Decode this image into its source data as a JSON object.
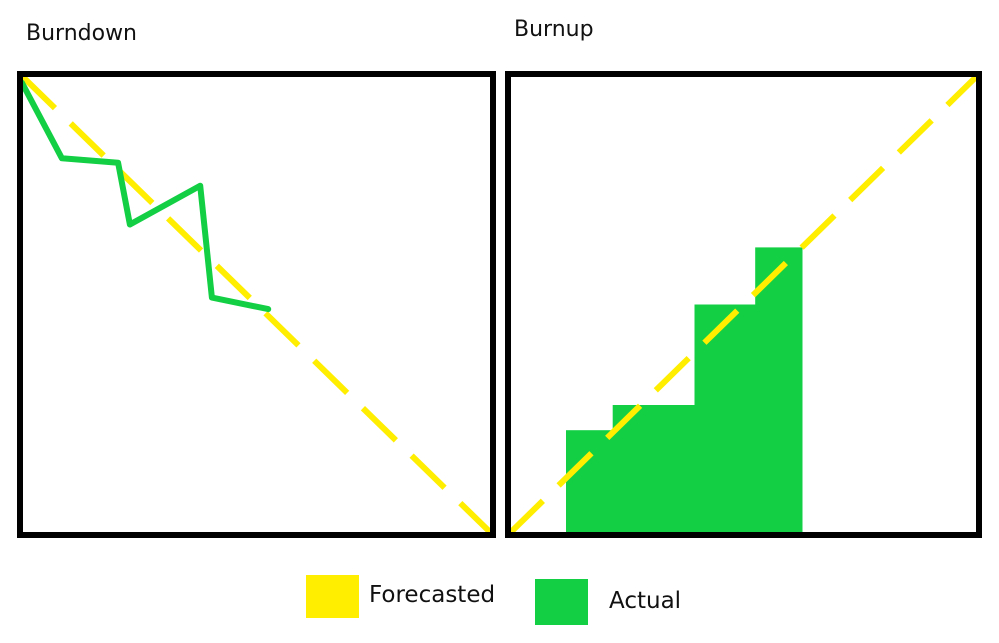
{
  "colors": {
    "forecast": "#ffee00",
    "actual": "#12cf44",
    "frame": "#000000"
  },
  "legend": {
    "forecast_label": "Forecasted",
    "actual_label": "Actual"
  },
  "chart_data": [
    {
      "type": "line",
      "title": "Burndown",
      "xlabel": "",
      "ylabel": "",
      "xlim": [
        0,
        100
      ],
      "ylim": [
        0,
        100
      ],
      "axes_labeled": false,
      "grid": false,
      "series": [
        {
          "key": "forecast",
          "style": "dashed",
          "x": [
            0,
            100
          ],
          "y": [
            100,
            0
          ]
        },
        {
          "key": "actual",
          "style": "solid",
          "x": [
            0,
            8.5,
            20.5,
            23,
            38,
            40.5,
            52.5
          ],
          "y": [
            98.5,
            82,
            81,
            67.5,
            76,
            51.5,
            49
          ]
        }
      ]
    },
    {
      "type": "bar",
      "title": "Burnup",
      "xlabel": "",
      "ylabel": "",
      "xlim": [
        0,
        100
      ],
      "ylim": [
        0,
        100
      ],
      "axes_labeled": false,
      "grid": false,
      "forecast": {
        "style": "dashed",
        "x": [
          0,
          100
        ],
        "y": [
          0,
          100
        ]
      },
      "steps": [
        {
          "x0": 12,
          "x1": 22,
          "value": 22.5
        },
        {
          "x0": 22,
          "x1": 39.5,
          "value": 28
        },
        {
          "x0": 39.5,
          "x1": 52.5,
          "value": 50
        },
        {
          "x0": 52.5,
          "x1": 62.5,
          "value": 62.5
        }
      ]
    }
  ]
}
